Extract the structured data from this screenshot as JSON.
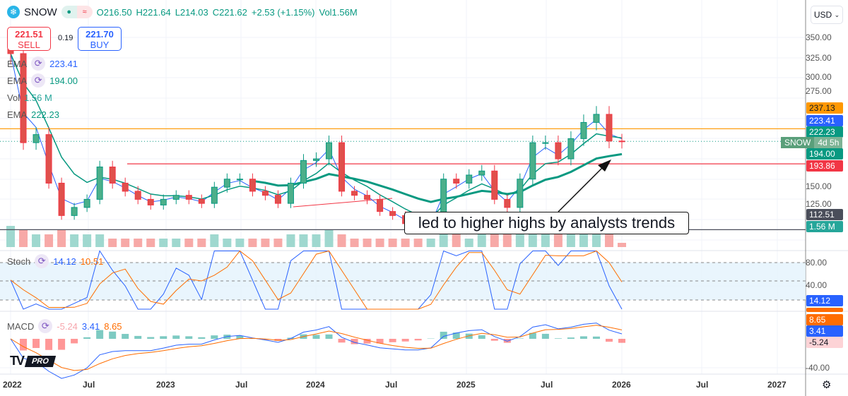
{
  "header": {
    "symbol": "SNOW",
    "open": "O216.50",
    "high": "H221.64",
    "low": "L214.03",
    "close": "C221.62",
    "change": "+2.53 (+1.15%)",
    "volume": "Vol1.56M",
    "currency": "USD"
  },
  "trade": {
    "sell_price": "221.51",
    "sell_label": "SELL",
    "spread": "0.19",
    "buy_price": "221.70",
    "buy_label": "BUY"
  },
  "indicators": [
    {
      "name": "EMA",
      "value": "223.41",
      "color": "#2962ff"
    },
    {
      "name": "EMA",
      "value": "194.00",
      "color": "#089981"
    },
    {
      "name": "Vol",
      "value": "1.56 M",
      "color": "#26a69a"
    },
    {
      "name": "EMA",
      "value": "222.23",
      "color": "#089981"
    }
  ],
  "stoch": {
    "name": "Stoch",
    "k": "14.12",
    "d": "10.51",
    "ticks": [
      "80.00",
      "40.00"
    ]
  },
  "macd": {
    "name": "MACD",
    "hist": "-5.24",
    "macd": "3.41",
    "signal": "8.65",
    "ticks": [
      "-40.00"
    ]
  },
  "price_axis": [
    "350.00",
    "325.00",
    "300.00",
    "275.00",
    "150.00",
    "125.00"
  ],
  "price_tags": [
    {
      "text": "237.13",
      "color": "#ff9800",
      "price": 237.13
    },
    {
      "text": "223.41",
      "color": "#2962ff",
      "price": 223.41
    },
    {
      "text": "222.23",
      "color": "#089981",
      "price": 222.23
    },
    {
      "text": "194.00",
      "color": "#089981",
      "price": 194.0
    },
    {
      "text": "193.86",
      "color": "#f23645",
      "price": 193.86
    },
    {
      "text": "112.51",
      "color": "#4a4e5a",
      "price": 112.51
    },
    {
      "text": "1.56 M",
      "color": "#26a69a",
      "price": null
    }
  ],
  "snow_tag": {
    "symbol": "SNOW",
    "countdown": "4d 5h"
  },
  "annotation": "led to higher highs by analysts trends",
  "time_axis": [
    "2022",
    "Jul",
    "2023",
    "Jul",
    "2024",
    "Jul",
    "2025",
    "Jul",
    "2026",
    "Jul",
    "2027"
  ],
  "brand": "PRO",
  "chart_data": {
    "type": "candlestick",
    "x_start": "2022-01",
    "interval": "month",
    "closes": [
      330,
      220,
      230,
      170,
      130,
      140,
      150,
      190,
      170,
      160,
      150,
      143,
      150,
      155,
      150,
      145,
      165,
      175,
      175,
      160,
      155,
      145,
      170,
      198,
      200,
      220,
      160,
      155,
      150,
      135,
      130,
      120,
      115,
      120,
      175,
      170,
      180,
      185,
      150,
      140,
      175,
      220,
      220,
      200,
      225,
      245,
      255,
      222,
      221.62
    ],
    "volume_relative": [
      5,
      4,
      3,
      3,
      4,
      3,
      3,
      3,
      2,
      2,
      2,
      2,
      2,
      2,
      2,
      2,
      3,
      2,
      2,
      2,
      2,
      2,
      3,
      3,
      3,
      4,
      3,
      2,
      2,
      2,
      2,
      2,
      2,
      2,
      4,
      3,
      2,
      3,
      3,
      3,
      3,
      4,
      3,
      3,
      3,
      3,
      4,
      3,
      1
    ],
    "horizontal_lines": [
      {
        "price": 237.13,
        "color": "#ff9800"
      },
      {
        "price": 193.86,
        "color": "#f23645"
      },
      {
        "price": 112.51,
        "color": "#4a4e5a"
      }
    ],
    "ylim": [
      100,
      360
    ],
    "stoch_levels": [
      80,
      50,
      20
    ]
  }
}
